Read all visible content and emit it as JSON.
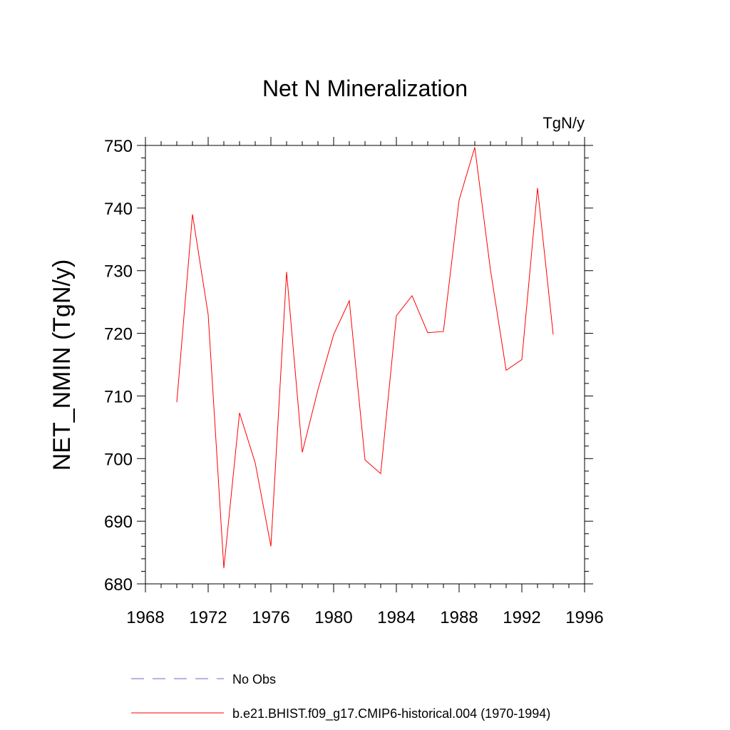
{
  "chart_data": {
    "type": "line",
    "title": "Net N Mineralization",
    "units_label": "TgN/y",
    "ylabel": "NET_NMIN  (TgN/y)",
    "xlabel": "",
    "xlim": [
      1968,
      1996
    ],
    "ylim": [
      680,
      750
    ],
    "x_ticks": [
      1968,
      1972,
      1976,
      1980,
      1984,
      1988,
      1992,
      1996
    ],
    "y_ticks": [
      680,
      690,
      700,
      710,
      720,
      730,
      740,
      750
    ],
    "x_minor_step": 1,
    "y_minor_step": 2,
    "grid": false,
    "legend_position": "bottom",
    "x": [
      1970,
      1971,
      1972,
      1973,
      1974,
      1975,
      1976,
      1977,
      1978,
      1979,
      1980,
      1981,
      1982,
      1983,
      1984,
      1985,
      1986,
      1987,
      1988,
      1989,
      1990,
      1991,
      1992,
      1993,
      1994
    ],
    "series": [
      {
        "name": "b.e21.BHIST.f09_g17.CMIP6-historical.004 (1970-1994)",
        "color": "#ff0000",
        "style": "solid",
        "values": [
          709,
          739,
          723,
          682.5,
          707.3,
          699.3,
          686,
          729.8,
          701,
          711,
          719.8,
          725.2,
          699.8,
          697.6,
          722.8,
          726,
          720.1,
          720.3,
          741.3,
          749.7,
          730.1,
          714.1,
          715.8,
          743.2,
          719.8
        ]
      }
    ],
    "legend": [
      {
        "label": "No Obs",
        "color": "#6a6ad6",
        "style": "dashed"
      },
      {
        "label": "b.e21.BHIST.f09_g17.CMIP6-historical.004 (1970-1994)",
        "color": "#ff0000",
        "style": "solid"
      }
    ]
  }
}
